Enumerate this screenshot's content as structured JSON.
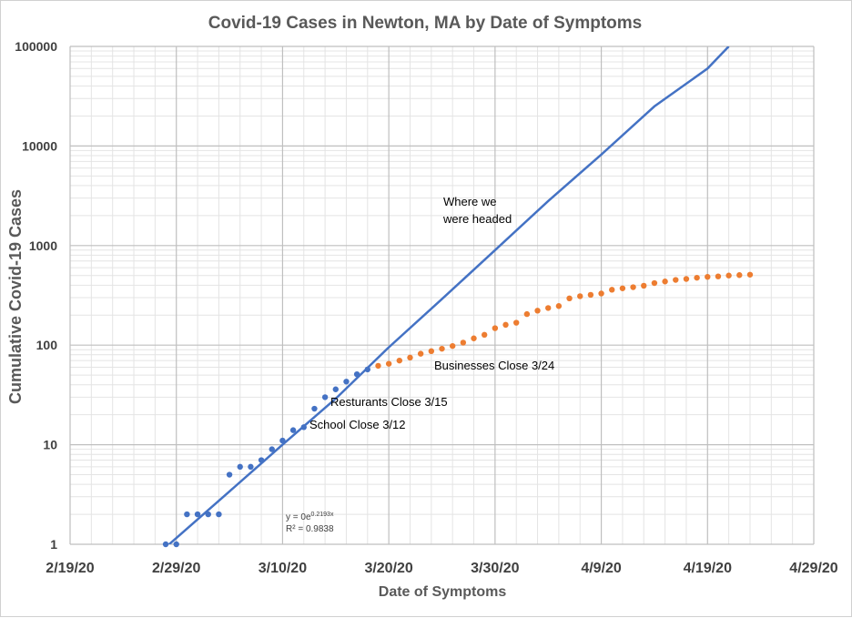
{
  "chart_data": {
    "type": "scatter",
    "title": "Covid-19 Cases in Newton, MA by Date of Symptoms",
    "xlabel": "Date of Symptoms",
    "ylabel": "Cumulative Covid-19 Cases",
    "y_scale": "log",
    "ylim": [
      1,
      100000
    ],
    "xlim": [
      "2020-02-19",
      "2020-04-29"
    ],
    "x_tick_labels": [
      "2/19/20",
      "2/29/20",
      "3/10/20",
      "3/20/20",
      "3/30/20",
      "4/9/20",
      "4/19/20",
      "4/29/20"
    ],
    "y_tick_labels": [
      "1",
      "10",
      "100",
      "1000",
      "10000",
      "100000"
    ],
    "grid": "major and minor",
    "series": [
      {
        "color": "#4472c4",
        "style": "dots",
        "points": [
          {
            "x": "2020-02-28",
            "y": 1
          },
          {
            "x": "2020-02-29",
            "y": 1
          },
          {
            "x": "2020-03-01",
            "y": 2
          },
          {
            "x": "2020-03-02",
            "y": 2
          },
          {
            "x": "2020-03-03",
            "y": 2
          },
          {
            "x": "2020-03-04",
            "y": 2
          },
          {
            "x": "2020-03-05",
            "y": 5
          },
          {
            "x": "2020-03-06",
            "y": 6
          },
          {
            "x": "2020-03-07",
            "y": 6
          },
          {
            "x": "2020-03-08",
            "y": 7
          },
          {
            "x": "2020-03-09",
            "y": 9
          },
          {
            "x": "2020-03-10",
            "y": 11
          },
          {
            "x": "2020-03-11",
            "y": 14
          },
          {
            "x": "2020-03-12",
            "y": 15
          },
          {
            "x": "2020-03-13",
            "y": 23
          },
          {
            "x": "2020-03-14",
            "y": 30
          },
          {
            "x": "2020-03-15",
            "y": 36
          },
          {
            "x": "2020-03-16",
            "y": 43
          },
          {
            "x": "2020-03-17",
            "y": 51
          },
          {
            "x": "2020-03-18",
            "y": 57
          }
        ]
      },
      {
        "color": "#ed7d31",
        "style": "dots",
        "points": [
          {
            "x": "2020-03-19",
            "y": 62
          },
          {
            "x": "2020-03-20",
            "y": 65
          },
          {
            "x": "2020-03-21",
            "y": 70
          },
          {
            "x": "2020-03-22",
            "y": 75
          },
          {
            "x": "2020-03-23",
            "y": 82
          },
          {
            "x": "2020-03-24",
            "y": 87
          },
          {
            "x": "2020-03-25",
            "y": 92
          },
          {
            "x": "2020-03-26",
            "y": 98
          },
          {
            "x": "2020-03-27",
            "y": 106
          },
          {
            "x": "2020-03-28",
            "y": 117
          },
          {
            "x": "2020-03-29",
            "y": 127
          },
          {
            "x": "2020-03-30",
            "y": 148
          },
          {
            "x": "2020-03-31",
            "y": 160
          },
          {
            "x": "2020-04-01",
            "y": 168
          },
          {
            "x": "2020-04-02",
            "y": 205
          },
          {
            "x": "2020-04-03",
            "y": 222
          },
          {
            "x": "2020-04-04",
            "y": 236
          },
          {
            "x": "2020-04-05",
            "y": 247
          },
          {
            "x": "2020-04-06",
            "y": 295
          },
          {
            "x": "2020-04-07",
            "y": 310
          },
          {
            "x": "2020-04-08",
            "y": 320
          },
          {
            "x": "2020-04-09",
            "y": 330
          },
          {
            "x": "2020-04-10",
            "y": 360
          },
          {
            "x": "2020-04-11",
            "y": 372
          },
          {
            "x": "2020-04-12",
            "y": 382
          },
          {
            "x": "2020-04-13",
            "y": 395
          },
          {
            "x": "2020-04-14",
            "y": 420
          },
          {
            "x": "2020-04-15",
            "y": 436
          },
          {
            "x": "2020-04-16",
            "y": 452
          },
          {
            "x": "2020-04-17",
            "y": 462
          },
          {
            "x": "2020-04-18",
            "y": 475
          },
          {
            "x": "2020-04-19",
            "y": 485
          },
          {
            "x": "2020-04-20",
            "y": 490
          },
          {
            "x": "2020-04-21",
            "y": 500
          },
          {
            "x": "2020-04-22",
            "y": 505
          },
          {
            "x": "2020-04-23",
            "y": 510
          }
        ]
      },
      {
        "color": "#4472c4",
        "style": "line",
        "points": [
          {
            "x": "2020-02-28",
            "y": 0.93
          },
          {
            "x": "2020-03-05",
            "y": 3.4
          },
          {
            "x": "2020-03-10",
            "y": 10
          },
          {
            "x": "2020-03-15",
            "y": 29
          },
          {
            "x": "2020-03-20",
            "y": 95
          },
          {
            "x": "2020-03-25",
            "y": 290
          },
          {
            "x": "2020-03-30",
            "y": 900
          },
          {
            "x": "2020-04-04",
            "y": 2800
          },
          {
            "x": "2020-04-09",
            "y": 8200
          },
          {
            "x": "2020-04-14",
            "y": 25000
          },
          {
            "x": "2020-04-19",
            "y": 60000
          },
          {
            "x": "2020-04-21",
            "y": 100000
          }
        ]
      }
    ],
    "annotations": {
      "headed_line1": "Where we",
      "headed_line2": "were headed",
      "businesses": "Businesses Close 3/24",
      "restaurants": "Resturants Close 3/15",
      "school": "School Close 3/12",
      "equation_base": "y = 0e",
      "equation_exp": "0.2193x",
      "r_squared": "R² = 0.9838"
    }
  }
}
